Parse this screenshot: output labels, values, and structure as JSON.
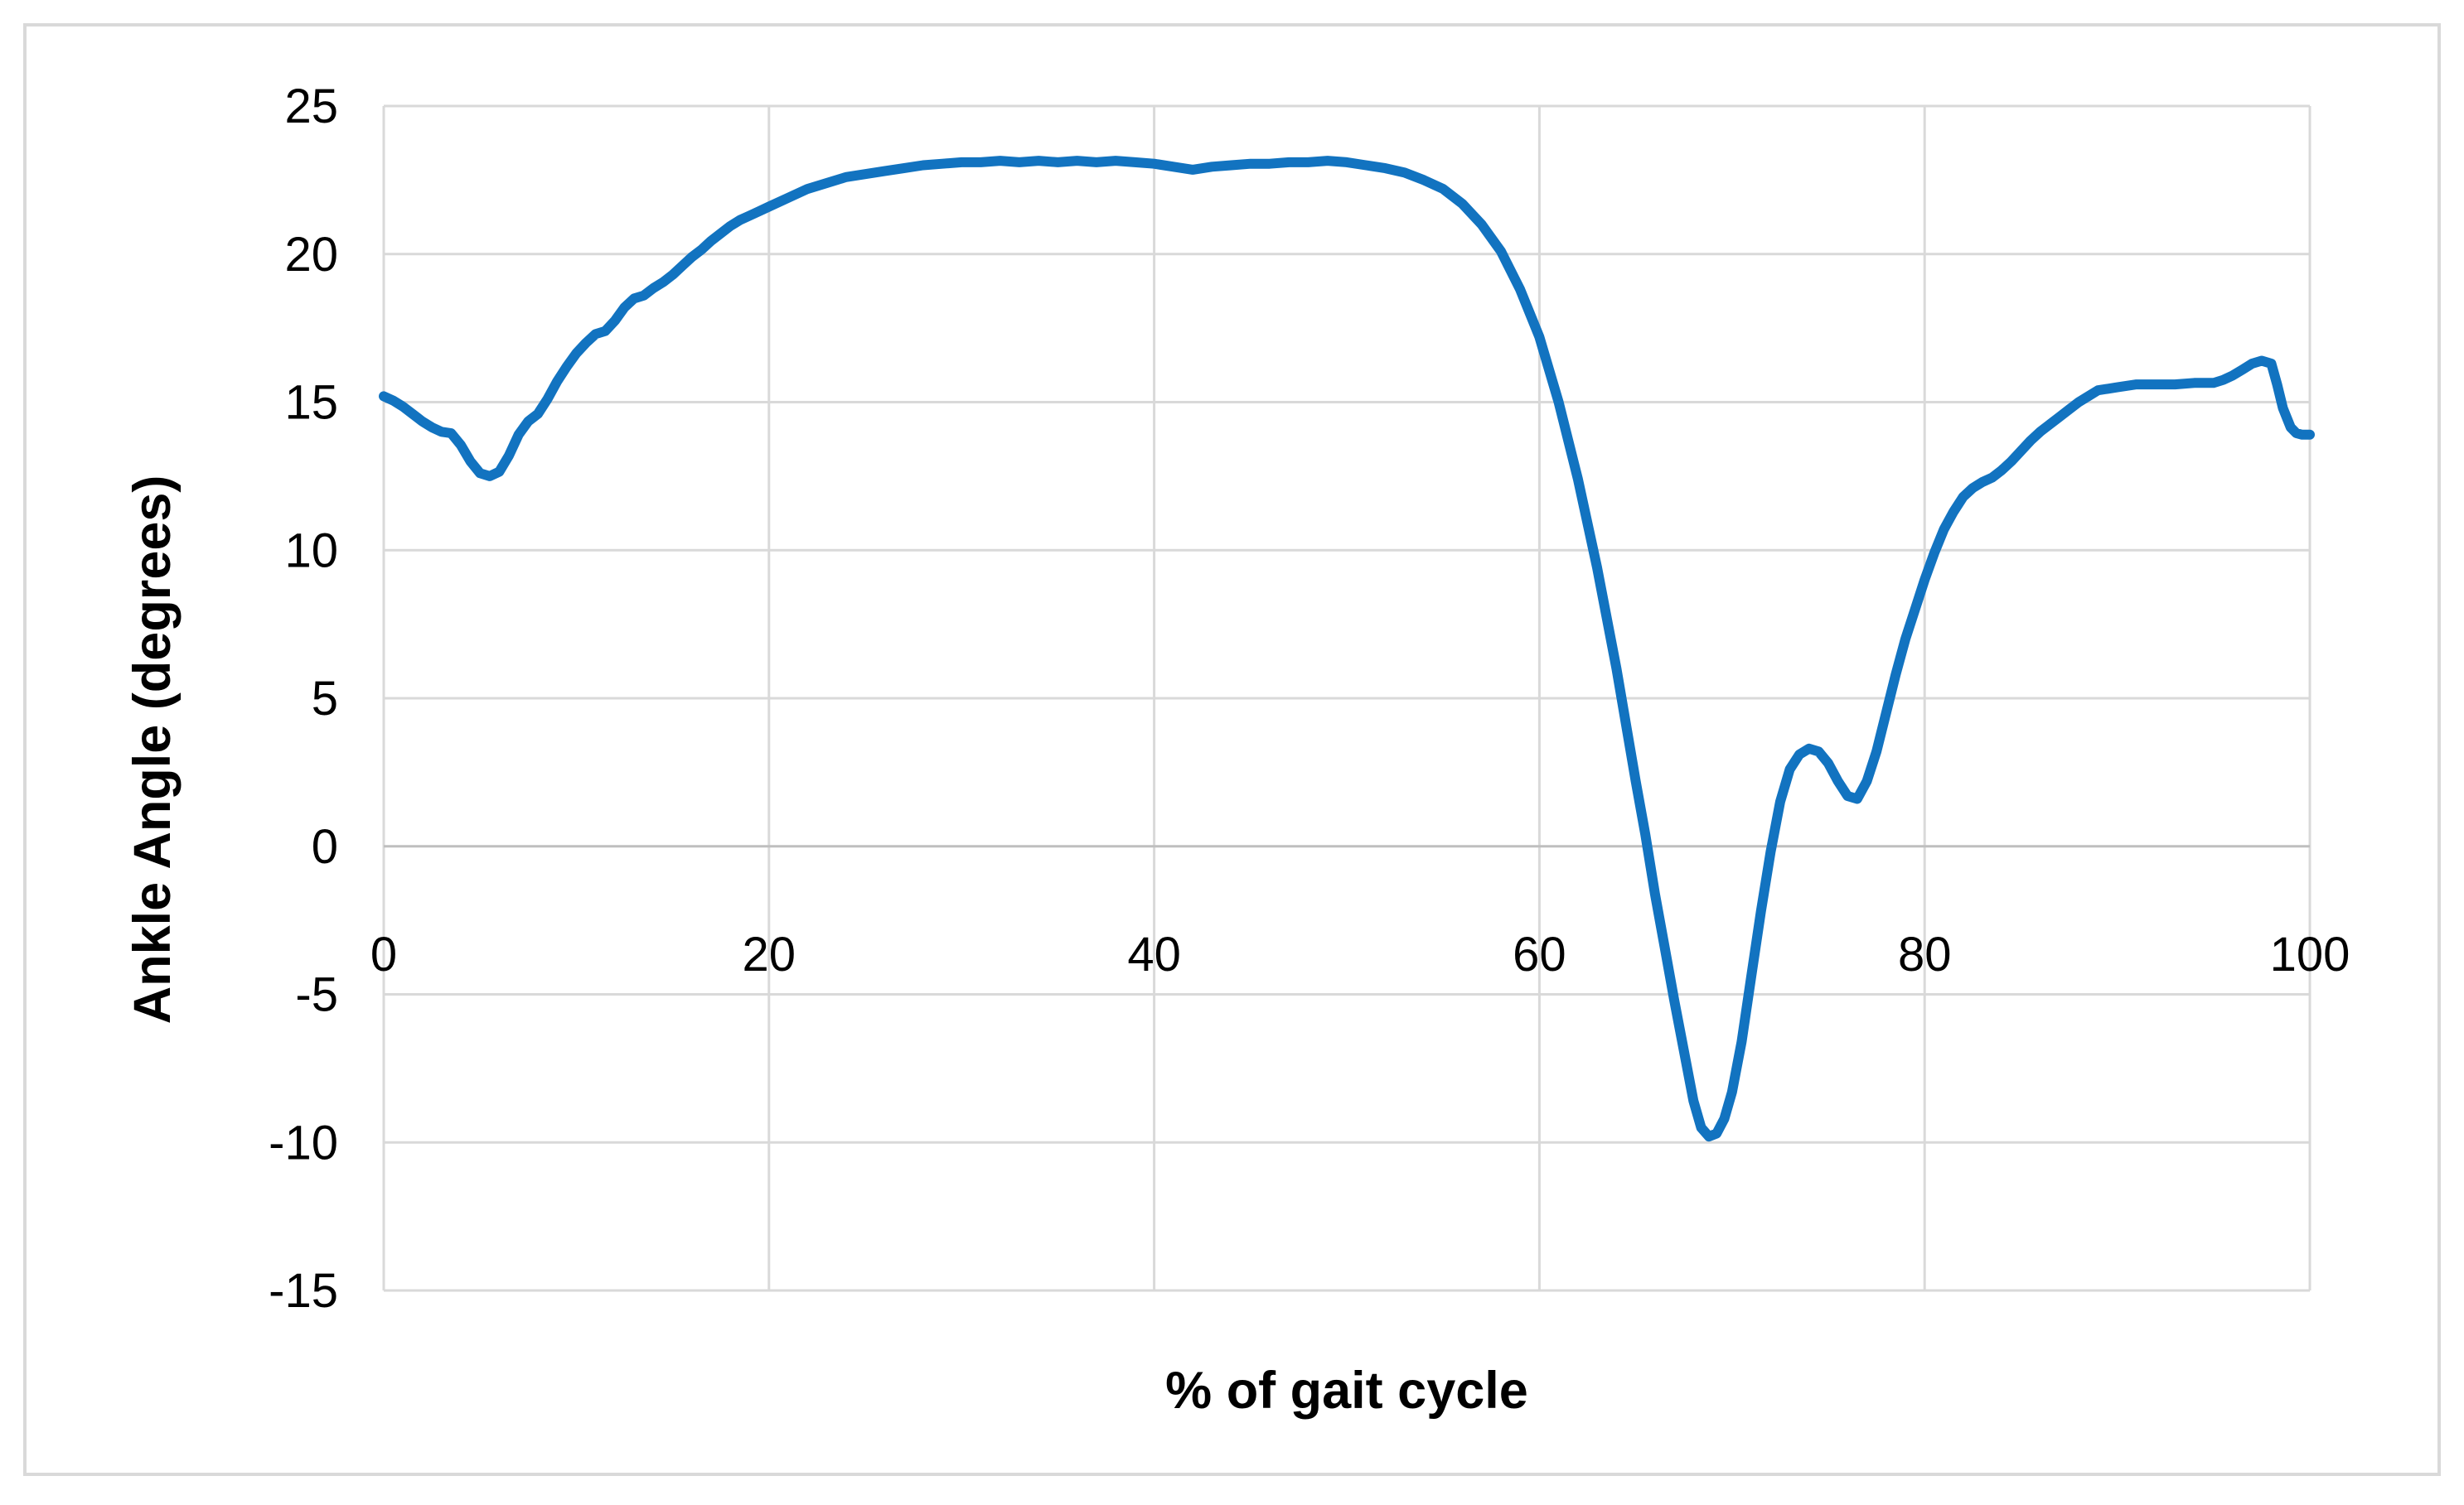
{
  "figure": {
    "background_color": "#ffffff",
    "border_color": "#d9d9d9"
  },
  "style": {
    "gridline_color": "#d9d9d9",
    "zero_axis_color": "#bfbfbf",
    "series_color": "#1273c0",
    "tick_label_color": "#000000"
  },
  "chart_data": {
    "type": "line",
    "title": "",
    "xlabel": "% of gait cycle",
    "ylabel": "Ankle Angle (degrees)",
    "xlim": [
      0,
      100
    ],
    "ylim": [
      -15,
      25
    ],
    "x_ticks": [
      0,
      20,
      40,
      60,
      80,
      100
    ],
    "y_ticks": [
      25,
      20,
      15,
      10,
      5,
      0,
      -5,
      -10,
      -15
    ],
    "grid": true,
    "legend_position": "none",
    "series": [
      {
        "name": "Ankle Angle",
        "color": "#1273c0",
        "points": [
          [
            0,
            15.2
          ],
          [
            0.5,
            15.05
          ],
          [
            1,
            14.85
          ],
          [
            1.5,
            14.6
          ],
          [
            2,
            14.35
          ],
          [
            2.5,
            14.15
          ],
          [
            3,
            14.0
          ],
          [
            3.5,
            13.95
          ],
          [
            4,
            13.55
          ],
          [
            4.5,
            13.0
          ],
          [
            5,
            12.6
          ],
          [
            5.5,
            12.5
          ],
          [
            6,
            12.65
          ],
          [
            6.5,
            13.2
          ],
          [
            7,
            13.9
          ],
          [
            7.5,
            14.35
          ],
          [
            8,
            14.6
          ],
          [
            8.5,
            15.1
          ],
          [
            9,
            15.7
          ],
          [
            9.5,
            16.2
          ],
          [
            10,
            16.65
          ],
          [
            10.5,
            17.0
          ],
          [
            11,
            17.3
          ],
          [
            11.5,
            17.4
          ],
          [
            12,
            17.75
          ],
          [
            12.5,
            18.2
          ],
          [
            13,
            18.5
          ],
          [
            13.5,
            18.6
          ],
          [
            14,
            18.85
          ],
          [
            14.5,
            19.05
          ],
          [
            15,
            19.3
          ],
          [
            15.5,
            19.6
          ],
          [
            16,
            19.9
          ],
          [
            16.5,
            20.15
          ],
          [
            17,
            20.45
          ],
          [
            17.5,
            20.7
          ],
          [
            18,
            20.95
          ],
          [
            18.5,
            21.15
          ],
          [
            19,
            21.3
          ],
          [
            19.5,
            21.45
          ],
          [
            20,
            21.6
          ],
          [
            21,
            21.9
          ],
          [
            22,
            22.2
          ],
          [
            23,
            22.4
          ],
          [
            24,
            22.6
          ],
          [
            25,
            22.7
          ],
          [
            26,
            22.8
          ],
          [
            27,
            22.9
          ],
          [
            28,
            23.0
          ],
          [
            29,
            23.05
          ],
          [
            30,
            23.1
          ],
          [
            31,
            23.1
          ],
          [
            32,
            23.15
          ],
          [
            33,
            23.1
          ],
          [
            34,
            23.15
          ],
          [
            35,
            23.1
          ],
          [
            36,
            23.15
          ],
          [
            37,
            23.1
          ],
          [
            38,
            23.15
          ],
          [
            39,
            23.1
          ],
          [
            40,
            23.05
          ],
          [
            41,
            22.95
          ],
          [
            42,
            22.85
          ],
          [
            43,
            22.95
          ],
          [
            44,
            23.0
          ],
          [
            45,
            23.05
          ],
          [
            46,
            23.05
          ],
          [
            47,
            23.1
          ],
          [
            48,
            23.1
          ],
          [
            49,
            23.15
          ],
          [
            50,
            23.1
          ],
          [
            51,
            23.0
          ],
          [
            52,
            22.9
          ],
          [
            53,
            22.75
          ],
          [
            54,
            22.5
          ],
          [
            55,
            22.2
          ],
          [
            56,
            21.7
          ],
          [
            57,
            21.0
          ],
          [
            58,
            20.1
          ],
          [
            59,
            18.8
          ],
          [
            60,
            17.2
          ],
          [
            61,
            15.0
          ],
          [
            62,
            12.4
          ],
          [
            63,
            9.4
          ],
          [
            64,
            6.0
          ],
          [
            65,
            2.2
          ],
          [
            65.5,
            0.4
          ],
          [
            66,
            -1.6
          ],
          [
            66.5,
            -3.4
          ],
          [
            67,
            -5.2
          ],
          [
            67.5,
            -6.9
          ],
          [
            68,
            -8.6
          ],
          [
            68.4,
            -9.5
          ],
          [
            68.8,
            -9.8
          ],
          [
            69.2,
            -9.7
          ],
          [
            69.6,
            -9.2
          ],
          [
            70,
            -8.3
          ],
          [
            70.5,
            -6.6
          ],
          [
            71,
            -4.4
          ],
          [
            71.5,
            -2.2
          ],
          [
            72,
            -0.2
          ],
          [
            72.5,
            1.5
          ],
          [
            73,
            2.6
          ],
          [
            73.5,
            3.1
          ],
          [
            74,
            3.3
          ],
          [
            74.5,
            3.2
          ],
          [
            75,
            2.8
          ],
          [
            75.5,
            2.2
          ],
          [
            76,
            1.7
          ],
          [
            76.5,
            1.6
          ],
          [
            77,
            2.2
          ],
          [
            77.5,
            3.2
          ],
          [
            78,
            4.5
          ],
          [
            78.5,
            5.8
          ],
          [
            79,
            7.0
          ],
          [
            79.5,
            8.0
          ],
          [
            80,
            9.0
          ],
          [
            80.5,
            9.9
          ],
          [
            81,
            10.7
          ],
          [
            81.5,
            11.3
          ],
          [
            82,
            11.8
          ],
          [
            82.5,
            12.1
          ],
          [
            83,
            12.3
          ],
          [
            83.5,
            12.45
          ],
          [
            84,
            12.7
          ],
          [
            84.5,
            13.0
          ],
          [
            85,
            13.35
          ],
          [
            85.5,
            13.7
          ],
          [
            86,
            14.0
          ],
          [
            86.5,
            14.25
          ],
          [
            87,
            14.5
          ],
          [
            87.5,
            14.75
          ],
          [
            88,
            15.0
          ],
          [
            88.5,
            15.2
          ],
          [
            89,
            15.4
          ],
          [
            89.5,
            15.45
          ],
          [
            90,
            15.5
          ],
          [
            90.5,
            15.55
          ],
          [
            91,
            15.6
          ],
          [
            92,
            15.6
          ],
          [
            93,
            15.6
          ],
          [
            94,
            15.65
          ],
          [
            95,
            15.65
          ],
          [
            95.5,
            15.75
          ],
          [
            96,
            15.9
          ],
          [
            96.5,
            16.1
          ],
          [
            97,
            16.3
          ],
          [
            97.5,
            16.4
          ],
          [
            98,
            16.3
          ],
          [
            98.3,
            15.6
          ],
          [
            98.6,
            14.8
          ],
          [
            99,
            14.15
          ],
          [
            99.3,
            13.95
          ],
          [
            99.6,
            13.9
          ],
          [
            100,
            13.9
          ]
        ]
      }
    ]
  }
}
